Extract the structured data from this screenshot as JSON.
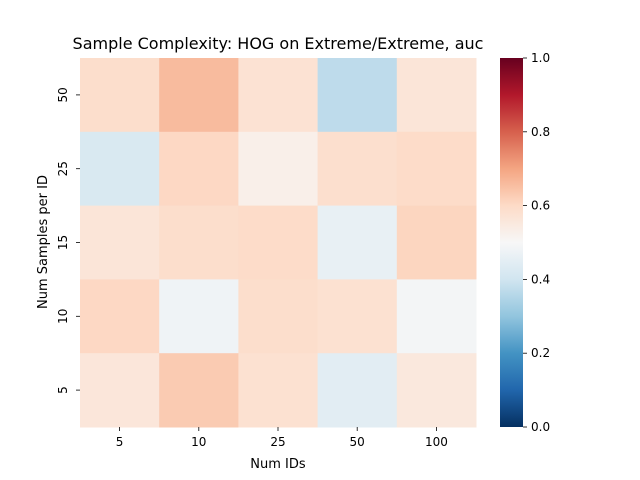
{
  "chart_data": {
    "type": "heatmap",
    "title": "Sample Complexity: HOG on Extreme/Extreme, auc",
    "xlabel": "Num IDs",
    "ylabel": "Num Samples per ID",
    "x_categories": [
      "5",
      "10",
      "25",
      "50",
      "100"
    ],
    "y_categories": [
      "50",
      "25",
      "15",
      "10",
      "5"
    ],
    "values": [
      [
        0.59,
        0.66,
        0.575,
        0.37,
        0.565
      ],
      [
        0.42,
        0.605,
        0.53,
        0.585,
        0.595
      ],
      [
        0.565,
        0.59,
        0.595,
        0.46,
        0.61
      ],
      [
        0.605,
        0.48,
        0.59,
        0.58,
        0.49
      ],
      [
        0.56,
        0.63,
        0.58,
        0.445,
        0.555
      ]
    ],
    "colorbar": {
      "vmin": 0.0,
      "vmax": 1.0,
      "ticks": [
        "0.0",
        "0.2",
        "0.4",
        "0.6",
        "0.8",
        "1.0"
      ],
      "colormap": "RdBu_r"
    },
    "grid": false
  }
}
